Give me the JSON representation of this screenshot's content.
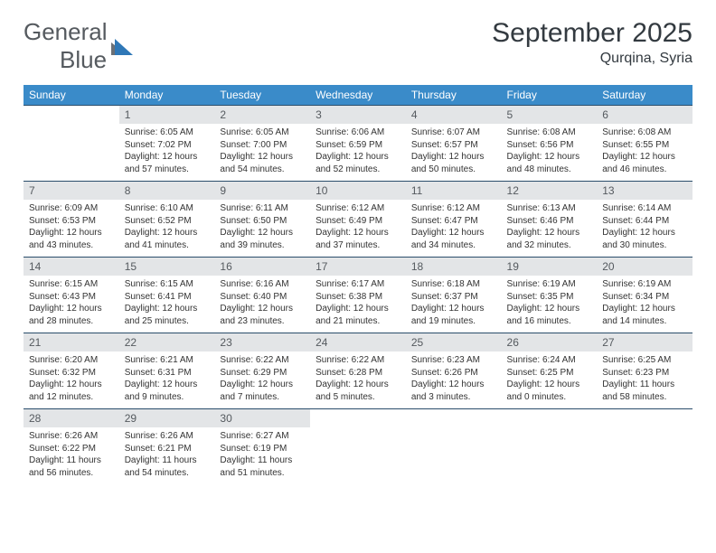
{
  "logo": {
    "word1": "General",
    "word2": "Blue"
  },
  "title": "September 2025",
  "location": "Qurqina, Syria",
  "colors": {
    "header_bg": "#3a8bc9",
    "header_fg": "#ffffff",
    "daynum_bg": "#e3e5e7",
    "daynum_fg": "#555a5f",
    "rule": "#2a4d6b",
    "logo_gray": "#6b7076",
    "logo_blue": "#2f78b7"
  },
  "day_headers": [
    "Sunday",
    "Monday",
    "Tuesday",
    "Wednesday",
    "Thursday",
    "Friday",
    "Saturday"
  ],
  "weeks": [
    {
      "nums": [
        "",
        "1",
        "2",
        "3",
        "4",
        "5",
        "6"
      ],
      "cells": [
        null,
        {
          "sunrise": "Sunrise: 6:05 AM",
          "sunset": "Sunset: 7:02 PM",
          "day1": "Daylight: 12 hours",
          "day2": "and 57 minutes."
        },
        {
          "sunrise": "Sunrise: 6:05 AM",
          "sunset": "Sunset: 7:00 PM",
          "day1": "Daylight: 12 hours",
          "day2": "and 54 minutes."
        },
        {
          "sunrise": "Sunrise: 6:06 AM",
          "sunset": "Sunset: 6:59 PM",
          "day1": "Daylight: 12 hours",
          "day2": "and 52 minutes."
        },
        {
          "sunrise": "Sunrise: 6:07 AM",
          "sunset": "Sunset: 6:57 PM",
          "day1": "Daylight: 12 hours",
          "day2": "and 50 minutes."
        },
        {
          "sunrise": "Sunrise: 6:08 AM",
          "sunset": "Sunset: 6:56 PM",
          "day1": "Daylight: 12 hours",
          "day2": "and 48 minutes."
        },
        {
          "sunrise": "Sunrise: 6:08 AM",
          "sunset": "Sunset: 6:55 PM",
          "day1": "Daylight: 12 hours",
          "day2": "and 46 minutes."
        }
      ]
    },
    {
      "nums": [
        "7",
        "8",
        "9",
        "10",
        "11",
        "12",
        "13"
      ],
      "cells": [
        {
          "sunrise": "Sunrise: 6:09 AM",
          "sunset": "Sunset: 6:53 PM",
          "day1": "Daylight: 12 hours",
          "day2": "and 43 minutes."
        },
        {
          "sunrise": "Sunrise: 6:10 AM",
          "sunset": "Sunset: 6:52 PM",
          "day1": "Daylight: 12 hours",
          "day2": "and 41 minutes."
        },
        {
          "sunrise": "Sunrise: 6:11 AM",
          "sunset": "Sunset: 6:50 PM",
          "day1": "Daylight: 12 hours",
          "day2": "and 39 minutes."
        },
        {
          "sunrise": "Sunrise: 6:12 AM",
          "sunset": "Sunset: 6:49 PM",
          "day1": "Daylight: 12 hours",
          "day2": "and 37 minutes."
        },
        {
          "sunrise": "Sunrise: 6:12 AM",
          "sunset": "Sunset: 6:47 PM",
          "day1": "Daylight: 12 hours",
          "day2": "and 34 minutes."
        },
        {
          "sunrise": "Sunrise: 6:13 AM",
          "sunset": "Sunset: 6:46 PM",
          "day1": "Daylight: 12 hours",
          "day2": "and 32 minutes."
        },
        {
          "sunrise": "Sunrise: 6:14 AM",
          "sunset": "Sunset: 6:44 PM",
          "day1": "Daylight: 12 hours",
          "day2": "and 30 minutes."
        }
      ]
    },
    {
      "nums": [
        "14",
        "15",
        "16",
        "17",
        "18",
        "19",
        "20"
      ],
      "cells": [
        {
          "sunrise": "Sunrise: 6:15 AM",
          "sunset": "Sunset: 6:43 PM",
          "day1": "Daylight: 12 hours",
          "day2": "and 28 minutes."
        },
        {
          "sunrise": "Sunrise: 6:15 AM",
          "sunset": "Sunset: 6:41 PM",
          "day1": "Daylight: 12 hours",
          "day2": "and 25 minutes."
        },
        {
          "sunrise": "Sunrise: 6:16 AM",
          "sunset": "Sunset: 6:40 PM",
          "day1": "Daylight: 12 hours",
          "day2": "and 23 minutes."
        },
        {
          "sunrise": "Sunrise: 6:17 AM",
          "sunset": "Sunset: 6:38 PM",
          "day1": "Daylight: 12 hours",
          "day2": "and 21 minutes."
        },
        {
          "sunrise": "Sunrise: 6:18 AM",
          "sunset": "Sunset: 6:37 PM",
          "day1": "Daylight: 12 hours",
          "day2": "and 19 minutes."
        },
        {
          "sunrise": "Sunrise: 6:19 AM",
          "sunset": "Sunset: 6:35 PM",
          "day1": "Daylight: 12 hours",
          "day2": "and 16 minutes."
        },
        {
          "sunrise": "Sunrise: 6:19 AM",
          "sunset": "Sunset: 6:34 PM",
          "day1": "Daylight: 12 hours",
          "day2": "and 14 minutes."
        }
      ]
    },
    {
      "nums": [
        "21",
        "22",
        "23",
        "24",
        "25",
        "26",
        "27"
      ],
      "cells": [
        {
          "sunrise": "Sunrise: 6:20 AM",
          "sunset": "Sunset: 6:32 PM",
          "day1": "Daylight: 12 hours",
          "day2": "and 12 minutes."
        },
        {
          "sunrise": "Sunrise: 6:21 AM",
          "sunset": "Sunset: 6:31 PM",
          "day1": "Daylight: 12 hours",
          "day2": "and 9 minutes."
        },
        {
          "sunrise": "Sunrise: 6:22 AM",
          "sunset": "Sunset: 6:29 PM",
          "day1": "Daylight: 12 hours",
          "day2": "and 7 minutes."
        },
        {
          "sunrise": "Sunrise: 6:22 AM",
          "sunset": "Sunset: 6:28 PM",
          "day1": "Daylight: 12 hours",
          "day2": "and 5 minutes."
        },
        {
          "sunrise": "Sunrise: 6:23 AM",
          "sunset": "Sunset: 6:26 PM",
          "day1": "Daylight: 12 hours",
          "day2": "and 3 minutes."
        },
        {
          "sunrise": "Sunrise: 6:24 AM",
          "sunset": "Sunset: 6:25 PM",
          "day1": "Daylight: 12 hours",
          "day2": "and 0 minutes."
        },
        {
          "sunrise": "Sunrise: 6:25 AM",
          "sunset": "Sunset: 6:23 PM",
          "day1": "Daylight: 11 hours",
          "day2": "and 58 minutes."
        }
      ]
    },
    {
      "nums": [
        "28",
        "29",
        "30",
        "",
        "",
        "",
        ""
      ],
      "cells": [
        {
          "sunrise": "Sunrise: 6:26 AM",
          "sunset": "Sunset: 6:22 PM",
          "day1": "Daylight: 11 hours",
          "day2": "and 56 minutes."
        },
        {
          "sunrise": "Sunrise: 6:26 AM",
          "sunset": "Sunset: 6:21 PM",
          "day1": "Daylight: 11 hours",
          "day2": "and 54 minutes."
        },
        {
          "sunrise": "Sunrise: 6:27 AM",
          "sunset": "Sunset: 6:19 PM",
          "day1": "Daylight: 11 hours",
          "day2": "and 51 minutes."
        },
        null,
        null,
        null,
        null
      ]
    }
  ]
}
